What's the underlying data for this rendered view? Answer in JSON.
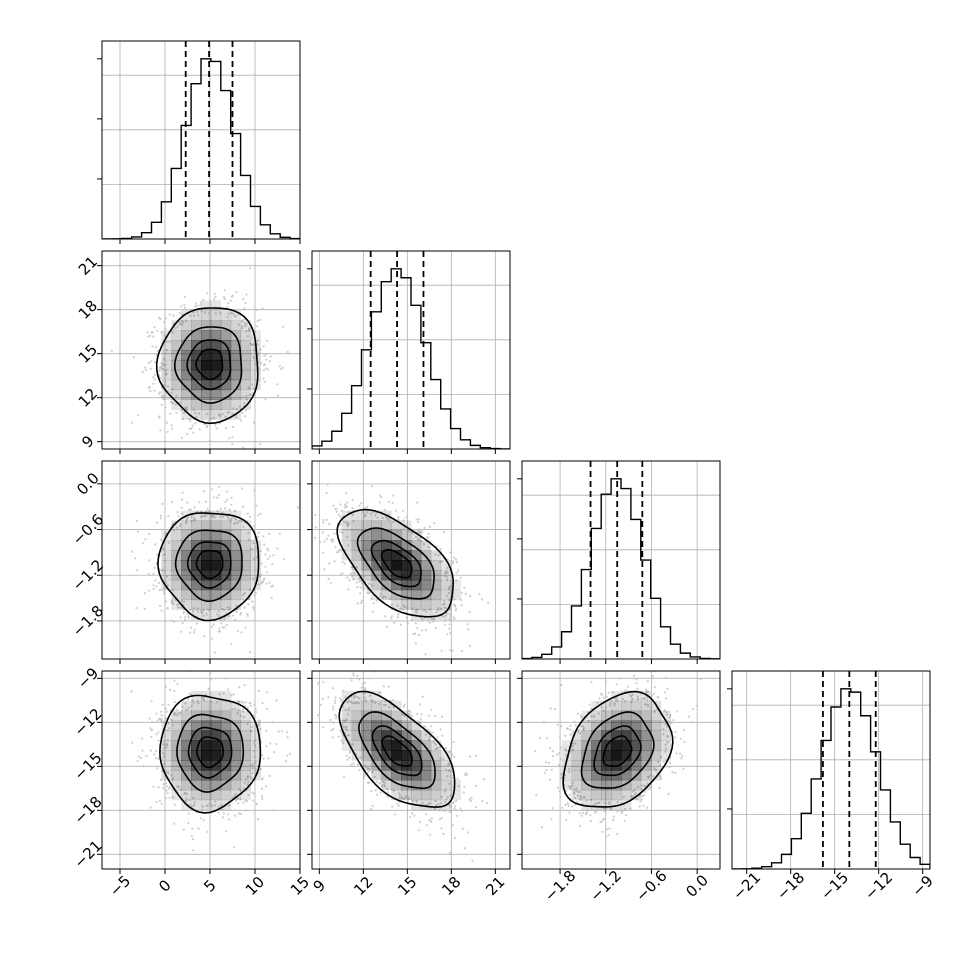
{
  "chart_data": {
    "type": "corner",
    "grid": true,
    "variables": [
      {
        "index": 0,
        "range": [
          -7,
          15
        ],
        "ticks": [
          -5,
          0,
          5,
          10,
          15
        ],
        "tick_labels": [
          "−5",
          "0",
          "5",
          "10",
          "15"
        ],
        "mean": 5.0,
        "sd": 2.7,
        "quantiles": [
          2.3,
          4.9,
          7.5
        ]
      },
      {
        "index": 1,
        "range": [
          8.5,
          22
        ],
        "ticks": [
          9,
          12,
          15,
          18,
          21
        ],
        "tick_labels": [
          "9",
          "12",
          "15",
          "18",
          "21"
        ],
        "mean": 14.3,
        "sd": 1.9,
        "quantiles": [
          12.5,
          14.3,
          16.1
        ]
      },
      {
        "index": 2,
        "range": [
          -2.3,
          0.3
        ],
        "ticks": [
          -1.8,
          -1.2,
          -0.6,
          0.0
        ],
        "tick_labels": [
          "−1.8",
          "−1.2",
          "−0.6",
          "0.0"
        ],
        "mean": -1.05,
        "sd": 0.34,
        "quantiles": [
          -1.4,
          -1.05,
          -0.72
        ]
      },
      {
        "index": 3,
        "range": [
          -22,
          -8.5
        ],
        "ticks": [
          -21,
          -18,
          -15,
          -12,
          -9
        ],
        "tick_labels": [
          "−21",
          "−18",
          "−15",
          "−12",
          "−9"
        ],
        "mean": -14.0,
        "sd": 1.9,
        "quantiles": [
          -15.8,
          -14.0,
          -12.2
        ]
      }
    ],
    "correlations": [
      {
        "pair": [
          1,
          0
        ],
        "rho": 0.0
      },
      {
        "pair": [
          2,
          0
        ],
        "rho": 0.0
      },
      {
        "pair": [
          2,
          1
        ],
        "rho": -0.55
      },
      {
        "pair": [
          3,
          0
        ],
        "rho": 0.0
      },
      {
        "pair": [
          3,
          1
        ],
        "rho": -0.6
      },
      {
        "pair": [
          3,
          2
        ],
        "rho": 0.3
      }
    ],
    "contour_levels_sigma": [
      0.5,
      1.0,
      1.5,
      2.0
    ],
    "colors": {
      "line": "#000000",
      "points": "#bdbdbd",
      "grid": "#b0b0b0",
      "density": "#000000"
    }
  }
}
